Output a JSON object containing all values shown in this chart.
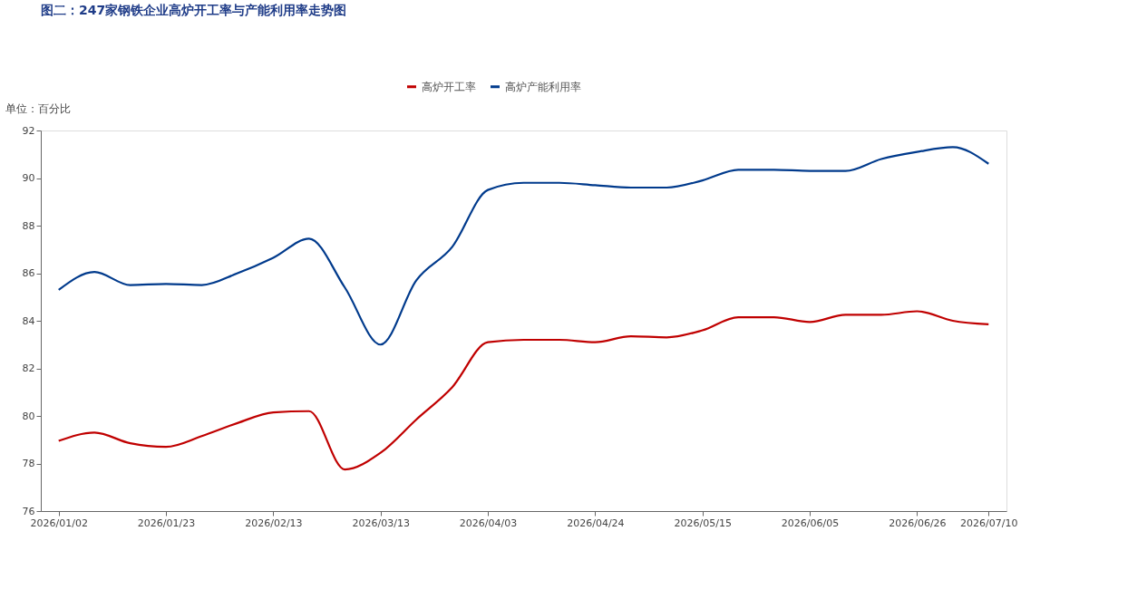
{
  "chart_data": {
    "type": "line",
    "title": "图二：247家钢铁企业高炉开工率与产能利用率走势图",
    "ylabel": "单位：百分比",
    "categories": [
      "2026/01/02",
      null,
      null,
      "2026/01/23",
      null,
      null,
      "2026/02/13",
      null,
      null,
      "2026/03/13",
      null,
      null,
      "2026/04/03",
      null,
      null,
      "2026/04/24",
      null,
      null,
      "2026/05/15",
      null,
      null,
      "2026/06/05",
      null,
      null,
      "2026/06/26",
      null,
      "2026/07/10"
    ],
    "series": [
      {
        "name": "高炉开工率",
        "color": "#c00000",
        "values": [
          78.95,
          79.3,
          78.85,
          78.7,
          79.15,
          79.7,
          80.15,
          80.2,
          77.75,
          78.45,
          79.85,
          81.2,
          83.1,
          83.2,
          83.2,
          83.1,
          83.35,
          83.3,
          83.6,
          84.15,
          84.15,
          83.95,
          84.25,
          84.25,
          84.4,
          84.0,
          83.85
        ]
      },
      {
        "name": "高炉产能利用率",
        "color": "#003a8c",
        "values": [
          85.3,
          86.05,
          85.5,
          85.55,
          85.5,
          86.0,
          86.65,
          87.45,
          85.4,
          83.0,
          85.7,
          87.1,
          89.5,
          89.8,
          89.8,
          89.7,
          89.6,
          89.6,
          89.9,
          90.35,
          90.35,
          90.3,
          90.3,
          90.8,
          91.1,
          91.3,
          90.6
        ]
      }
    ],
    "ylim": [
      76,
      92
    ],
    "yticks": [
      76,
      78,
      80,
      82,
      84,
      86,
      88,
      90,
      92
    ],
    "grid": false,
    "legend": "top",
    "marker": "none",
    "line_style": "solid"
  }
}
